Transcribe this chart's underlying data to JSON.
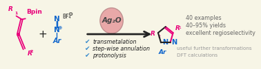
{
  "background_color": "#f7f5e6",
  "border_color": "#c8c5a0",
  "figsize": [
    3.78,
    1.01
  ],
  "dpi": 100,
  "catalyst_label": "Ag₂O",
  "catalyst_circle_color": "#e8a8a8",
  "catalyst_circle_edge": "#c09090",
  "checkmarks": [
    "transmetalation",
    "step-wise annulation",
    "protonolysis"
  ],
  "checkmark_color": "#3388cc",
  "result_lines": [
    "40 examples",
    "40–95% yields",
    "excellent regioselectivity"
  ],
  "result_color": "#666666",
  "footnote_lines": [
    "useful further transformations",
    "DFT calculations"
  ],
  "footnote_color": "#999999",
  "pink_color": "#e8007a",
  "blue_color": "#1166cc",
  "black_color": "#222222"
}
